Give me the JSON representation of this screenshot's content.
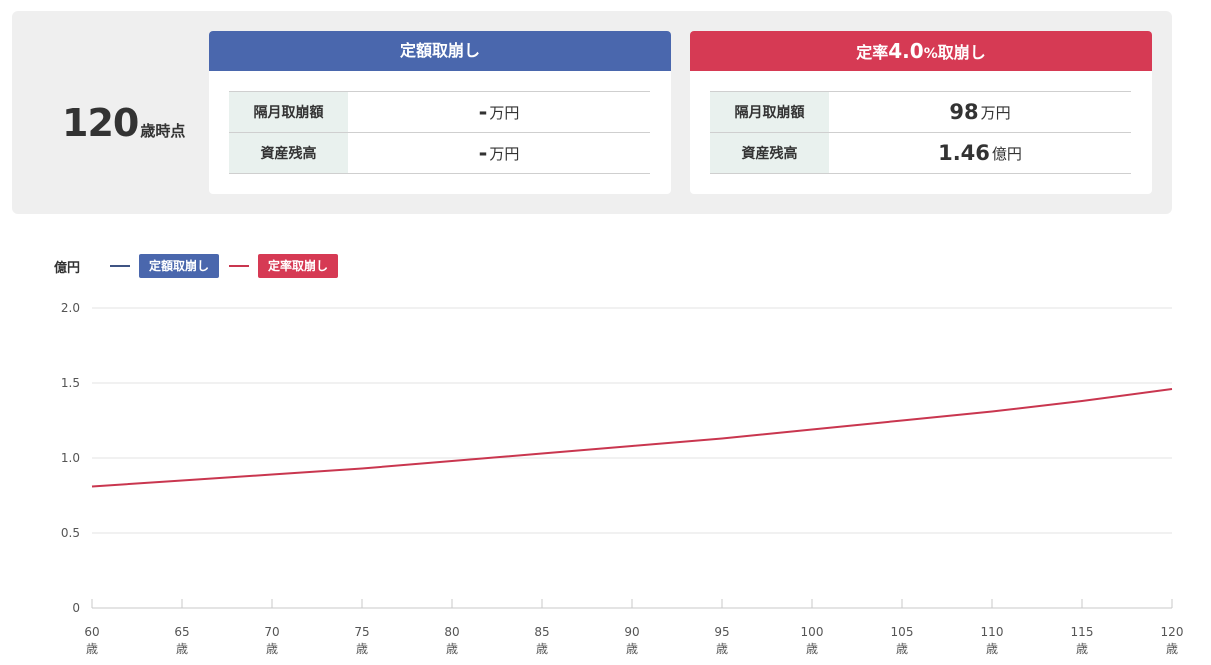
{
  "summary": {
    "age_number": "120",
    "age_suffix": "歳時点",
    "fixed": {
      "title": "定額取崩し",
      "rows": [
        {
          "label": "隔月取崩額",
          "value": "-",
          "unit": "万円"
        },
        {
          "label": "資産残高",
          "value": "-",
          "unit": "万円"
        }
      ]
    },
    "rate": {
      "title_prefix": "定率",
      "title_rate": "4.0",
      "title_pct": "%",
      "title_suffix": "取崩し",
      "rows": [
        {
          "label": "隔月取崩額",
          "value": "98",
          "unit": "万円"
        },
        {
          "label": "資産残高",
          "value": "1.46",
          "unit": "億円"
        }
      ]
    }
  },
  "colors": {
    "fixed": "#4a67ad",
    "rate": "#d63a54",
    "rate_line": "#c9364f",
    "grid": "#e3e3e3",
    "axis": "#c8c8c8"
  },
  "chart_data": {
    "type": "line",
    "ylabel": "億円",
    "ylim": [
      0,
      2.0
    ],
    "yticks": [
      {
        "value": 0,
        "label": "0"
      },
      {
        "value": 0.5,
        "label": "0.5"
      },
      {
        "value": 1.0,
        "label": "1.0"
      },
      {
        "value": 1.5,
        "label": "1.5"
      },
      {
        "value": 2.0,
        "label": "2.0"
      }
    ],
    "xlim": [
      60,
      120
    ],
    "xticks": [
      60,
      65,
      70,
      75,
      80,
      85,
      90,
      95,
      100,
      105,
      110,
      115,
      120
    ],
    "xtick_unit": "歳",
    "grid": true,
    "legend_position": "top-left",
    "series": [
      {
        "name": "定額取崩し",
        "color": "#4a67ad",
        "x": [],
        "values": []
      },
      {
        "name": "定率取崩し",
        "color": "#c9364f",
        "x": [
          60,
          65,
          70,
          75,
          80,
          85,
          90,
          95,
          100,
          105,
          110,
          115,
          120
        ],
        "values": [
          0.81,
          0.85,
          0.89,
          0.93,
          0.98,
          1.03,
          1.08,
          1.13,
          1.19,
          1.25,
          1.31,
          1.38,
          1.46
        ]
      }
    ]
  }
}
